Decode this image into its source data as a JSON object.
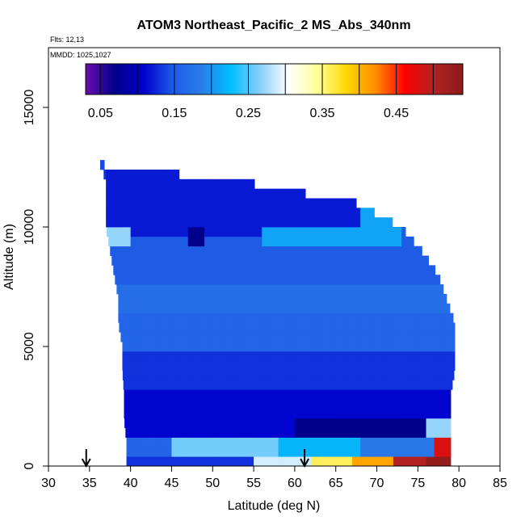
{
  "chart_data": {
    "type": "heatmap",
    "title": "ATOM3 Northeast_Pacific_2 MS_Abs_340nm",
    "flights_label": "Flts: 12,13",
    "mmdd_label": "MMDD: 1025,1027",
    "xlabel": "Latitude (deg N)",
    "ylabel": "Altitude (m)",
    "xlim": [
      30,
      85
    ],
    "ylim": [
      0,
      17500
    ],
    "x_ticks": [
      "30",
      "35",
      "40",
      "45",
      "50",
      "55",
      "60",
      "65",
      "70",
      "75",
      "80",
      "85"
    ],
    "y_ticks": [
      "0",
      "5000",
      "10000",
      "15000"
    ],
    "colorbar": {
      "range": [
        0.03,
        0.54
      ],
      "tick_labels": [
        "0.05",
        "0.15",
        "0.25",
        "0.35",
        "0.45"
      ],
      "tick_values": [
        0.05,
        0.15,
        0.25,
        0.35,
        0.45
      ],
      "palette": [
        "#6a0dad",
        "#00008b",
        "#0000cd",
        "#1e5ae6",
        "#2a7de8",
        "#00bfff",
        "#87cefa",
        "#ffffff",
        "#ffff99",
        "#ffd700",
        "#ff8c00",
        "#ff0000",
        "#b22222",
        "#8b1a1a"
      ]
    },
    "arrow_markers_lat": [
      34.6,
      61.2
    ],
    "profile_envelope": [
      {
        "alt": 12500,
        "lat_min": 36.3,
        "lat_max": 36.8
      },
      {
        "alt": 12000,
        "lat_min": 37.0,
        "lat_max": 52.0
      },
      {
        "alt": 11000,
        "lat_min": 37.0,
        "lat_max": 67.5
      },
      {
        "alt": 10000,
        "lat_min": 37.0,
        "lat_max": 73.0
      },
      {
        "alt": 9000,
        "lat_min": 37.5,
        "lat_max": 75.5
      },
      {
        "alt": 8000,
        "lat_min": 38.0,
        "lat_max": 77.5
      },
      {
        "alt": 7000,
        "lat_min": 38.5,
        "lat_max": 78.5
      },
      {
        "alt": 6000,
        "lat_min": 38.5,
        "lat_max": 79.5
      },
      {
        "alt": 5000,
        "lat_min": 39.0,
        "lat_max": 79.5
      },
      {
        "alt": 4000,
        "lat_min": 39.0,
        "lat_max": 79.5
      },
      {
        "alt": 3000,
        "lat_min": 39.2,
        "lat_max": 79.0
      },
      {
        "alt": 2000,
        "lat_min": 39.2,
        "lat_max": 79.0
      },
      {
        "alt": 1000,
        "lat_min": 39.5,
        "lat_max": 79.0
      },
      {
        "alt": 0,
        "lat_min": 39.5,
        "lat_max": 79.0
      }
    ],
    "cells": [
      {
        "alt": 0,
        "lat_start": 39.5,
        "lat_end": 55.0,
        "value": 0.13
      },
      {
        "alt": 0,
        "lat_start": 55.0,
        "lat_end": 62.0,
        "value": 0.29
      },
      {
        "alt": 0,
        "lat_start": 62.0,
        "lat_end": 67.0,
        "value": 0.36
      },
      {
        "alt": 0,
        "lat_start": 67.0,
        "lat_end": 72.0,
        "value": 0.41
      },
      {
        "alt": 0,
        "lat_start": 72.0,
        "lat_end": 76.0,
        "value": 0.5
      },
      {
        "alt": 0,
        "lat_start": 76.0,
        "lat_end": 79.0,
        "value": 0.53
      },
      {
        "alt": 800,
        "lat_start": 39.5,
        "lat_end": 45.0,
        "value": 0.16
      },
      {
        "alt": 800,
        "lat_start": 45.0,
        "lat_end": 58.0,
        "value": 0.26
      },
      {
        "alt": 800,
        "lat_start": 58.0,
        "lat_end": 68.0,
        "value": 0.22
      },
      {
        "alt": 800,
        "lat_start": 68.0,
        "lat_end": 77.0,
        "value": 0.18
      },
      {
        "alt": 800,
        "lat_start": 77.0,
        "lat_end": 79.0,
        "value": 0.48
      },
      {
        "alt": 1500,
        "lat_start": 39.5,
        "lat_end": 60.0,
        "value": 0.11
      },
      {
        "alt": 1500,
        "lat_start": 60.0,
        "lat_end": 76.0,
        "value": 0.07
      },
      {
        "alt": 1500,
        "lat_start": 76.0,
        "lat_end": 79.0,
        "value": 0.27
      },
      {
        "alt": 2500,
        "lat_start": 39.2,
        "lat_end": 79.0,
        "value": 0.11
      },
      {
        "alt": 4000,
        "lat_start": 39.0,
        "lat_end": 79.5,
        "value": 0.13
      },
      {
        "alt": 5500,
        "lat_start": 38.5,
        "lat_end": 79.5,
        "value": 0.16
      },
      {
        "alt": 7000,
        "lat_start": 38.5,
        "lat_end": 78.5,
        "value": 0.17
      },
      {
        "alt": 8000,
        "lat_start": 38.0,
        "lat_end": 77.5,
        "value": 0.15
      },
      {
        "alt": 9000,
        "lat_start": 37.5,
        "lat_end": 75.5,
        "value": 0.15
      },
      {
        "alt": 9500,
        "lat_start": 37.0,
        "lat_end": 40.0,
        "value": 0.27
      },
      {
        "alt": 9500,
        "lat_start": 47.0,
        "lat_end": 49.0,
        "value": 0.07
      },
      {
        "alt": 9500,
        "lat_start": 56.0,
        "lat_end": 73.0,
        "value": 0.21
      },
      {
        "alt": 10500,
        "lat_start": 37.0,
        "lat_end": 67.5,
        "value": 0.12
      },
      {
        "alt": 11500,
        "lat_start": 37.0,
        "lat_end": 52.0,
        "value": 0.12
      },
      {
        "alt": 12500,
        "lat_start": 36.3,
        "lat_end": 36.8,
        "value": 0.14
      }
    ]
  }
}
